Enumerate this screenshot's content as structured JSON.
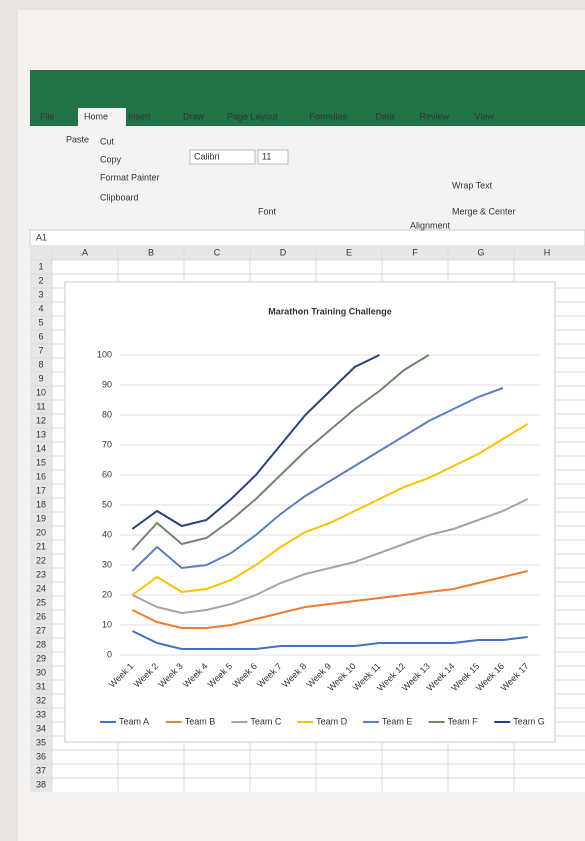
{
  "ribbon": {
    "tabs": [
      "File",
      "Home",
      "Insert",
      "Draw",
      "Page Layout",
      "Formulas",
      "Data",
      "Review",
      "View"
    ],
    "clipboard": {
      "paste": "Paste",
      "cut": "Cut",
      "copy": "Copy",
      "format_painter": "Format Painter",
      "label": "Clipboard"
    },
    "font": {
      "name": "Calibri",
      "size": "11",
      "label": "Font"
    },
    "alignment": {
      "wrap": "Wrap Text",
      "merge": "Merge & Center",
      "label": "Alignment"
    }
  },
  "sheet": {
    "name_box": "A1",
    "columns": [
      "A",
      "B",
      "C",
      "D",
      "E",
      "F",
      "G",
      "H"
    ],
    "rows": [
      "1",
      "2",
      "3",
      "4",
      "5",
      "6",
      "7",
      "8",
      "9",
      "10",
      "11",
      "12",
      "13",
      "14",
      "15",
      "16",
      "17",
      "18",
      "19",
      "20",
      "21",
      "22",
      "23",
      "24",
      "25",
      "26",
      "27",
      "28",
      "29",
      "30",
      "31",
      "32",
      "33",
      "34",
      "35",
      "36",
      "37",
      "38"
    ]
  },
  "chart_data": {
    "type": "line",
    "title": "Marathon Training Challenge",
    "categories": [
      "Week 1",
      "Week 2",
      "Week 3",
      "Week 4",
      "Week 5",
      "Week 6",
      "Week 7",
      "Week 8",
      "Week 9",
      "Week 10",
      "Week 11",
      "Week 12",
      "Week 13",
      "Week 14",
      "Week 15",
      "Week 16",
      "Week 17"
    ],
    "ylim": [
      0,
      100
    ],
    "yticks": [
      0,
      10,
      20,
      30,
      40,
      50,
      60,
      70,
      80,
      90,
      100
    ],
    "grid": true,
    "legend": "bottom",
    "series": [
      {
        "name": "Team A",
        "color": "#4472c4",
        "values": [
          8,
          4,
          2,
          2,
          2,
          2,
          3,
          3,
          3,
          3,
          4,
          4,
          4,
          4,
          5,
          5,
          6
        ]
      },
      {
        "name": "Team B",
        "color": "#ed7d31",
        "values": [
          15,
          11,
          9,
          9,
          10,
          12,
          14,
          16,
          17,
          18,
          19,
          20,
          21,
          22,
          24,
          26,
          28
        ]
      },
      {
        "name": "Team C",
        "color": "#a5a5a5",
        "values": [
          20,
          16,
          14,
          15,
          17,
          20,
          24,
          27,
          29,
          31,
          34,
          37,
          40,
          42,
          45,
          48,
          52
        ]
      },
      {
        "name": "Team D",
        "color": "#ffc000",
        "values": [
          20,
          26,
          21,
          22,
          25,
          30,
          36,
          41,
          44,
          48,
          52,
          56,
          59,
          63,
          67,
          72,
          77
        ]
      },
      {
        "name": "Team E",
        "color": "#5b7fc4",
        "values": [
          28,
          36,
          29,
          30,
          34,
          40,
          47,
          53,
          58,
          63,
          68,
          73,
          78,
          82,
          86,
          89,
          null
        ]
      },
      {
        "name": "Team F",
        "color": "#70866a",
        "values": [
          35,
          44,
          37,
          39,
          45,
          52,
          60,
          68,
          75,
          82,
          88,
          95,
          100,
          null,
          null,
          null,
          null
        ]
      },
      {
        "name": "Team G",
        "color": "#264478",
        "values": [
          42,
          48,
          43,
          45,
          52,
          60,
          70,
          80,
          88,
          96,
          100,
          null,
          null,
          null,
          null,
          null,
          null
        ]
      }
    ]
  }
}
